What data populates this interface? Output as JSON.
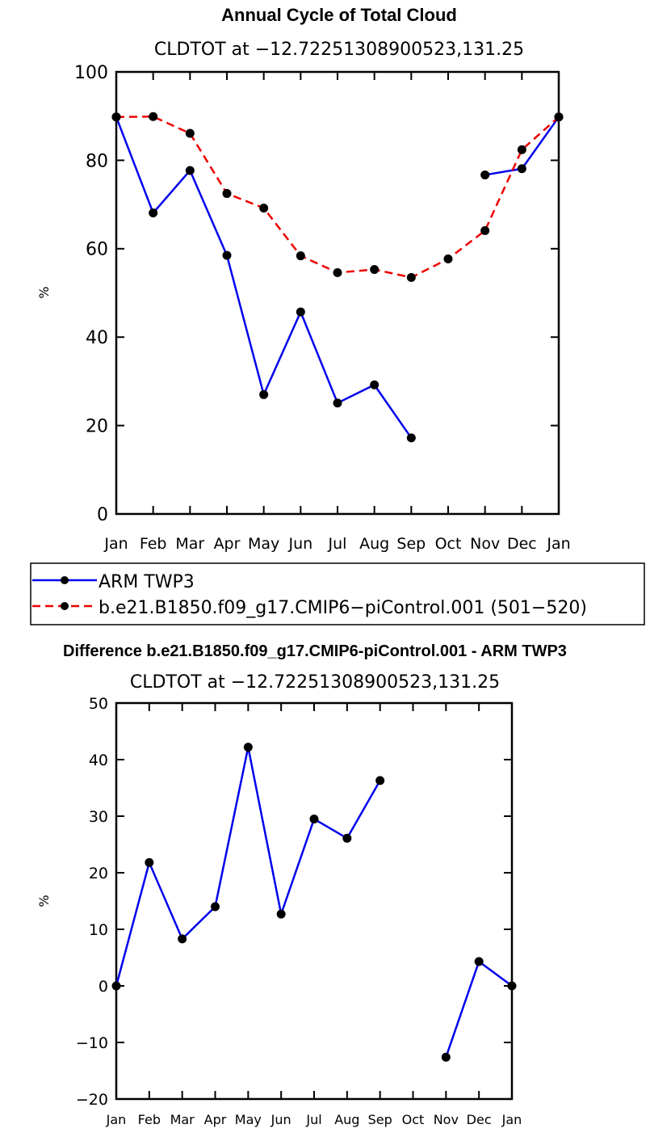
{
  "chart_data": [
    {
      "type": "line",
      "title": "Annual Cycle of Total Cloud",
      "subtitle": "CLDTOT at −12.72251308900523,131.25",
      "ylabel": "%",
      "xlabel": "",
      "categories": [
        "Jan",
        "Feb",
        "Mar",
        "Apr",
        "May",
        "Jun",
        "Jul",
        "Aug",
        "Sep",
        "Oct",
        "Nov",
        "Dec",
        "Jan"
      ],
      "ylim": [
        0,
        100
      ],
      "yticks": [
        0,
        20,
        40,
        60,
        80,
        100
      ],
      "series": [
        {
          "name": "ARM TWP3",
          "color": "#0000ee",
          "dash": "solid",
          "values": [
            89.8,
            68.1,
            77.7,
            58.5,
            27.0,
            45.7,
            25.1,
            29.2,
            17.2,
            null,
            76.7,
            78.1,
            89.8
          ]
        },
        {
          "name": "b.e21.B1850.f09_g17.CMIP6−piControl.001 (501−520)",
          "color": "#ee0000",
          "dash": "dashed",
          "values": [
            89.8,
            89.9,
            86.1,
            72.5,
            69.2,
            58.4,
            54.6,
            55.3,
            53.5,
            57.7,
            64.1,
            82.4,
            89.8
          ]
        }
      ],
      "legend": [
        "ARM TWP3",
        "b.e21.B1850.f09_g17.CMIP6−piControl.001 (501−520)"
      ],
      "legend_position": "below"
    },
    {
      "type": "line",
      "title": "Difference b.e21.B1850.f09_g17.CMIP6-piControl.001 - ARM TWP3",
      "subtitle": "CLDTOT at −12.72251308900523,131.25",
      "ylabel": "%",
      "xlabel": "",
      "categories": [
        "Jan",
        "Feb",
        "Mar",
        "Apr",
        "May",
        "Jun",
        "Jul",
        "Aug",
        "Sep",
        "Oct",
        "Nov",
        "Dec",
        "Jan"
      ],
      "ylim": [
        -20,
        50
      ],
      "yticks": [
        -20,
        -10,
        0,
        10,
        20,
        30,
        40,
        50
      ],
      "series": [
        {
          "name": "Difference",
          "color": "#0000ee",
          "dash": "solid",
          "values": [
            0,
            21.8,
            8.3,
            14.0,
            42.2,
            12.7,
            29.5,
            26.1,
            36.3,
            null,
            -12.6,
            4.3,
            0
          ]
        }
      ]
    }
  ]
}
